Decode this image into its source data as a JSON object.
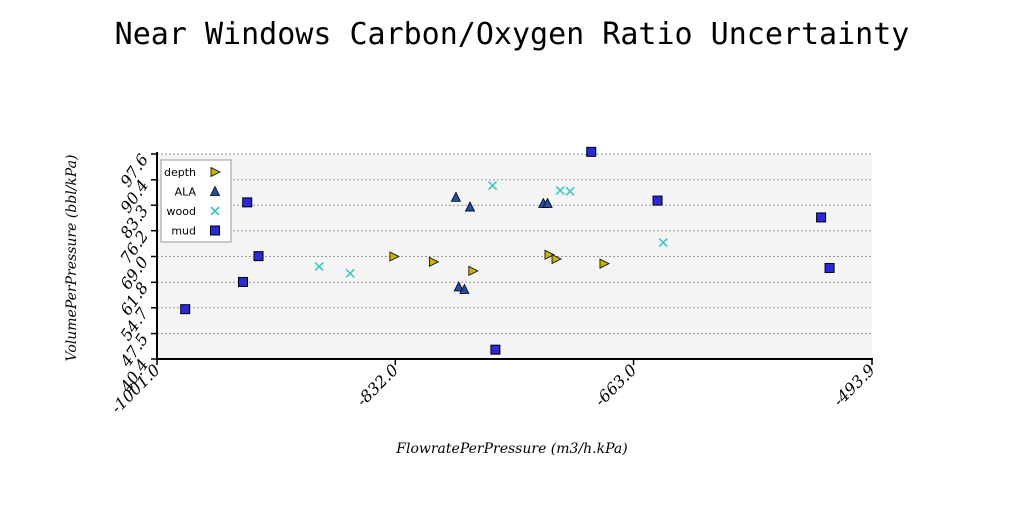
{
  "chart_data": {
    "type": "scatter",
    "title": "Near Windows Carbon/Oxygen Ratio Uncertainty",
    "xlabel": "FlowratePerPressure (m3/h.kPa)",
    "ylabel": "VolumePerPressure (bbl/kPa)",
    "xlim": [
      -1001.0,
      -493.9
    ],
    "ylim": [
      40.4,
      97.6
    ],
    "x_ticks": [
      "-1001.0",
      "-832.0",
      "-663.0",
      "-493.9"
    ],
    "x_tick_values": [
      -1001.0,
      -832.0,
      -663.0,
      -493.9
    ],
    "y_ticks": [
      "40.4",
      "47.5",
      "54.7",
      "61.8",
      "69.0",
      "76.2",
      "83.3",
      "90.4",
      "97.6"
    ],
    "y_tick_values": [
      40.4,
      47.5,
      54.7,
      61.8,
      69.0,
      76.2,
      83.3,
      90.4,
      97.6
    ],
    "grid": true,
    "legend_position": "top-left",
    "series": [
      {
        "name": "depth",
        "marker": "triangle-right",
        "color": "#C8B400",
        "x": [
          -833.0,
          -805.0,
          -777.0,
          -723.0,
          -718.0,
          -684.0
        ],
        "y": [
          69.0,
          67.5,
          65.0,
          69.5,
          68.3,
          67.0
        ]
      },
      {
        "name": "ALA",
        "marker": "triangle-up",
        "color": "#1F4FA8",
        "x": [
          -789.0,
          -779.0,
          -787.0,
          -783.0,
          -727.0,
          -724.0
        ],
        "y": [
          85.5,
          82.8,
          60.5,
          59.8,
          83.8,
          83.8
        ]
      },
      {
        "name": "wood",
        "marker": "x",
        "color": "#3CC6C6",
        "x": [
          -886.0,
          -864.0,
          -763.0,
          -715.0,
          -708.0,
          -642.0
        ],
        "y": [
          66.2,
          64.3,
          88.8,
          87.4,
          87.2,
          72.9
        ]
      },
      {
        "name": "mud",
        "marker": "square",
        "color": "#2A2AD8",
        "x": [
          -981.0,
          -940.0,
          -937.0,
          -929.0,
          -761.0,
          -693.0,
          -646.0,
          -530.0,
          -524.0
        ],
        "y": [
          54.3,
          61.9,
          84.1,
          69.1,
          43.0,
          98.2,
          84.6,
          79.9,
          65.8
        ]
      }
    ]
  }
}
